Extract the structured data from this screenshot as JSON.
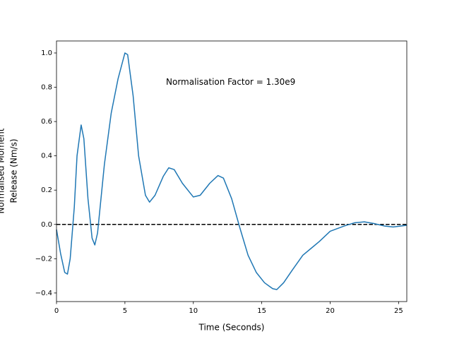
{
  "chart_data": {
    "type": "line",
    "annotation": {
      "text": "Normalisation Factor = 1.30e9",
      "x": 8.0,
      "y": 0.83
    },
    "xlabel": "Time (Seconds)",
    "ylabel": [
      "Normalised Moment",
      "Release (Nm/s)"
    ],
    "x": [
      0,
      0.3,
      0.6,
      0.8,
      1.0,
      1.3,
      1.5,
      1.8,
      2.0,
      2.3,
      2.6,
      2.8,
      3.0,
      3.5,
      4.0,
      4.5,
      5.0,
      5.2,
      5.6,
      6.0,
      6.5,
      6.8,
      7.2,
      7.8,
      8.2,
      8.6,
      9.2,
      10.0,
      10.5,
      11.2,
      11.8,
      12.2,
      12.8,
      13.4,
      14.0,
      14.6,
      15.2,
      15.8,
      16.1,
      16.6,
      17.2,
      18.0,
      18.6,
      19.2,
      20.0,
      21.0,
      21.8,
      22.5,
      23.2,
      24.0,
      24.6,
      25.6
    ],
    "series": [
      {
        "color": "#1f77b4",
        "values": [
          -0.03,
          -0.17,
          -0.28,
          -0.29,
          -0.2,
          0.1,
          0.4,
          0.58,
          0.5,
          0.15,
          -0.08,
          -0.12,
          -0.05,
          0.35,
          0.65,
          0.85,
          1.0,
          0.99,
          0.75,
          0.4,
          0.17,
          0.13,
          0.17,
          0.28,
          0.33,
          0.32,
          0.24,
          0.16,
          0.17,
          0.24,
          0.285,
          0.27,
          0.15,
          -0.02,
          -0.18,
          -0.28,
          -0.34,
          -0.375,
          -0.38,
          -0.34,
          -0.27,
          -0.18,
          -0.14,
          -0.1,
          -0.04,
          -0.01,
          0.01,
          0.015,
          0.005,
          -0.01,
          -0.015,
          -0.005
        ]
      }
    ],
    "hline": {
      "value": 0,
      "color": "#000000",
      "dashed": true
    },
    "xlim": [
      0,
      25.6
    ],
    "ylim": [
      -0.45,
      1.07
    ],
    "xticks": [
      0,
      5,
      10,
      15,
      20,
      25
    ],
    "yticks": [
      {
        "value": -0.4,
        "label": "−0.4"
      },
      {
        "value": -0.2,
        "label": "−0.2"
      },
      {
        "value": 0,
        "label": "0.0"
      },
      {
        "value": 0.2,
        "label": "0.2"
      },
      {
        "value": 0.4,
        "label": "0.4"
      },
      {
        "value": 0.6,
        "label": "0.6"
      },
      {
        "value": 0.8,
        "label": "0.8"
      },
      {
        "value": 1.0,
        "label": "1.0"
      }
    ],
    "grid": false
  }
}
